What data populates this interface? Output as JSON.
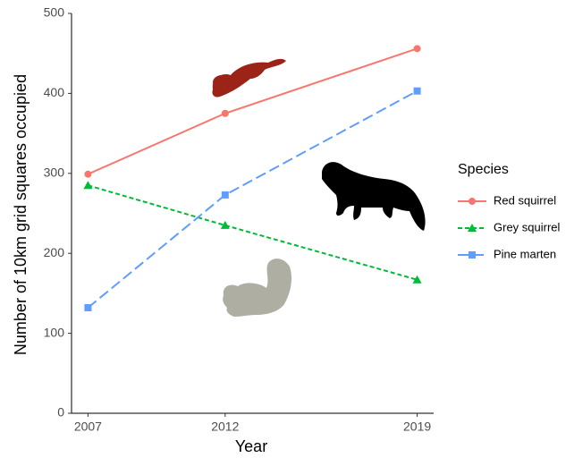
{
  "chart_data": {
    "type": "line",
    "x_label": "Year",
    "y_label": "Number of 10km grid squares occupied",
    "legend_title": "Species",
    "legend_position": "right",
    "x": [
      2007,
      2012,
      2019
    ],
    "xlim": [
      2006.4,
      2019.6
    ],
    "xticks": [
      2007,
      2012,
      2019
    ],
    "ylim": [
      0,
      500
    ],
    "yticks": [
      0,
      100,
      200,
      300,
      400,
      500
    ],
    "series": [
      {
        "name": "Red squirrel",
        "color": "#f8766d",
        "dash": "solid",
        "marker": "circle",
        "values": [
          299,
          375,
          456
        ]
      },
      {
        "name": "Grey squirrel",
        "color": "#00ba38",
        "dash": "short",
        "marker": "triangle",
        "values": [
          285,
          235,
          167
        ]
      },
      {
        "name": "Pine marten",
        "color": "#619cff",
        "dash": "long",
        "marker": "square",
        "values": [
          132,
          273,
          403
        ]
      }
    ]
  }
}
